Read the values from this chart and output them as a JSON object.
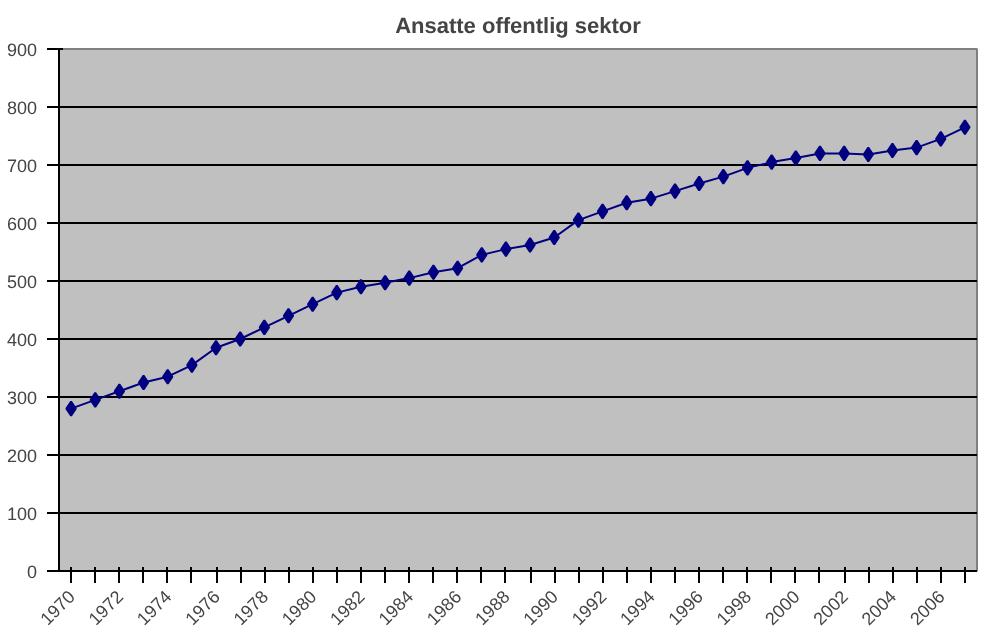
{
  "chart_data": {
    "type": "line",
    "title": "Ansatte offentlig sektor",
    "categories": [
      "1970",
      null,
      "1972",
      null,
      "1974",
      null,
      "1976",
      null,
      "1978",
      null,
      "1980",
      null,
      "1982",
      null,
      "1984",
      null,
      "1986",
      null,
      "1988",
      null,
      "1990",
      null,
      "1992",
      null,
      "1994",
      null,
      "1996",
      null,
      "1998",
      null,
      "2000",
      null,
      "2002",
      null,
      "2004",
      null,
      "2006",
      null
    ],
    "series": [
      {
        "color": "#000080",
        "values": [
          280,
          295,
          310,
          325,
          335,
          355,
          385,
          400,
          420,
          440,
          460,
          480,
          490,
          497,
          505,
          515,
          522,
          545,
          555,
          562,
          575,
          605,
          620,
          635,
          642,
          655,
          668,
          680,
          695,
          705,
          712,
          720,
          720,
          718,
          725,
          730,
          745,
          765
        ]
      }
    ],
    "ylim": [
      0,
      900
    ],
    "yticks": [
      0,
      100,
      200,
      300,
      400,
      500,
      600,
      700,
      800,
      900
    ],
    "grid": "y",
    "marker": "diamond",
    "line_style": "solid"
  }
}
